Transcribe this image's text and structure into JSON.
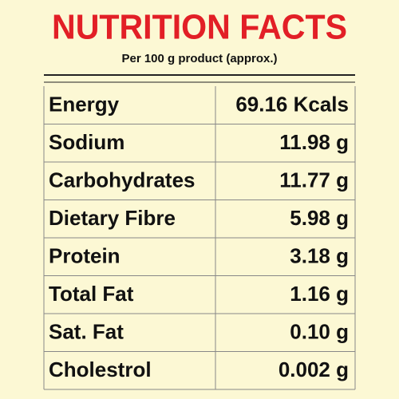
{
  "header": {
    "title": "NUTRITION FACTS",
    "subtitle": "Per 100 g product (approx.)"
  },
  "table": {
    "rows": [
      [
        "Energy",
        "69.16 Kcals"
      ],
      [
        "Sodium",
        "11.98 g"
      ],
      [
        "Carbohydrates",
        "11.77 g"
      ],
      [
        "Dietary Fibre",
        "5.98 g"
      ],
      [
        "Protein",
        "3.18 g"
      ],
      [
        "Total Fat",
        "1.16 g"
      ],
      [
        "Sat. Fat",
        "0.10 g"
      ],
      [
        "Cholestrol",
        "0.002 g"
      ]
    ]
  }
}
